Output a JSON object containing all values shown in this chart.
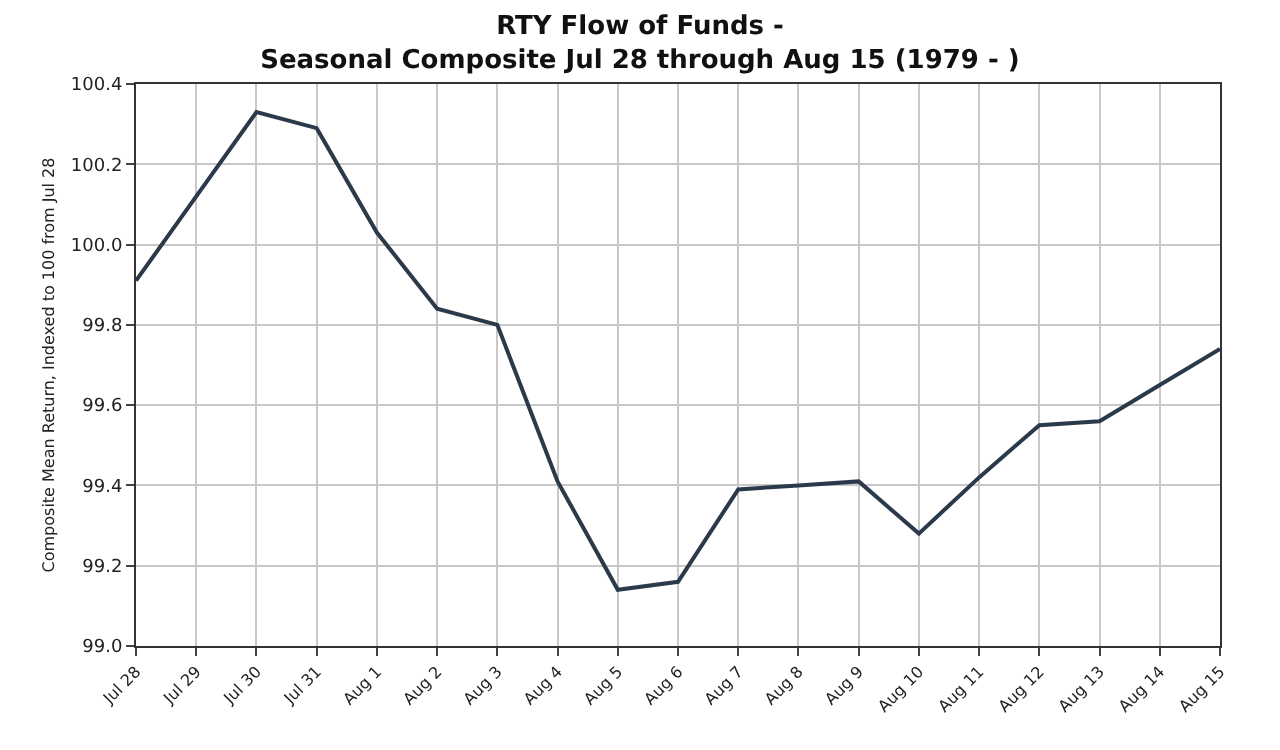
{
  "chart_data": {
    "type": "line",
    "title": "RTY Flow of Funds -\nSeasonal Composite Jul 28 through Aug 15 (1979 - )",
    "ylabel": "Composite Mean Return, Indexed to 100 from Jul 28",
    "categories": [
      "Jul 28",
      "Jul 29",
      "Jul 30",
      "Jul 31",
      "Aug 1",
      "Aug 2",
      "Aug 3",
      "Aug 4",
      "Aug 5",
      "Aug 6",
      "Aug 7",
      "Aug 8",
      "Aug 9",
      "Aug 10",
      "Aug 11",
      "Aug 12",
      "Aug 13",
      "Aug 14",
      "Aug 15"
    ],
    "series": [
      {
        "color": "#2b3a4a",
        "values": [
          99.91,
          100.12,
          100.33,
          100.29,
          100.03,
          99.84,
          99.8,
          99.41,
          99.14,
          99.16,
          99.39,
          99.4,
          99.41,
          99.28,
          99.42,
          99.55,
          99.56,
          99.65,
          99.74
        ]
      }
    ],
    "ylim": [
      99.0,
      100.4
    ],
    "yticks": [
      {
        "value": 99.0,
        "label": "99.0"
      },
      99.2,
      99.4,
      99.6,
      99.8,
      {
        "value": 100.0,
        "label": "100.0"
      },
      100.2,
      100.4
    ],
    "grid": true,
    "legend": false,
    "marker": "none",
    "line_style": "solid"
  }
}
